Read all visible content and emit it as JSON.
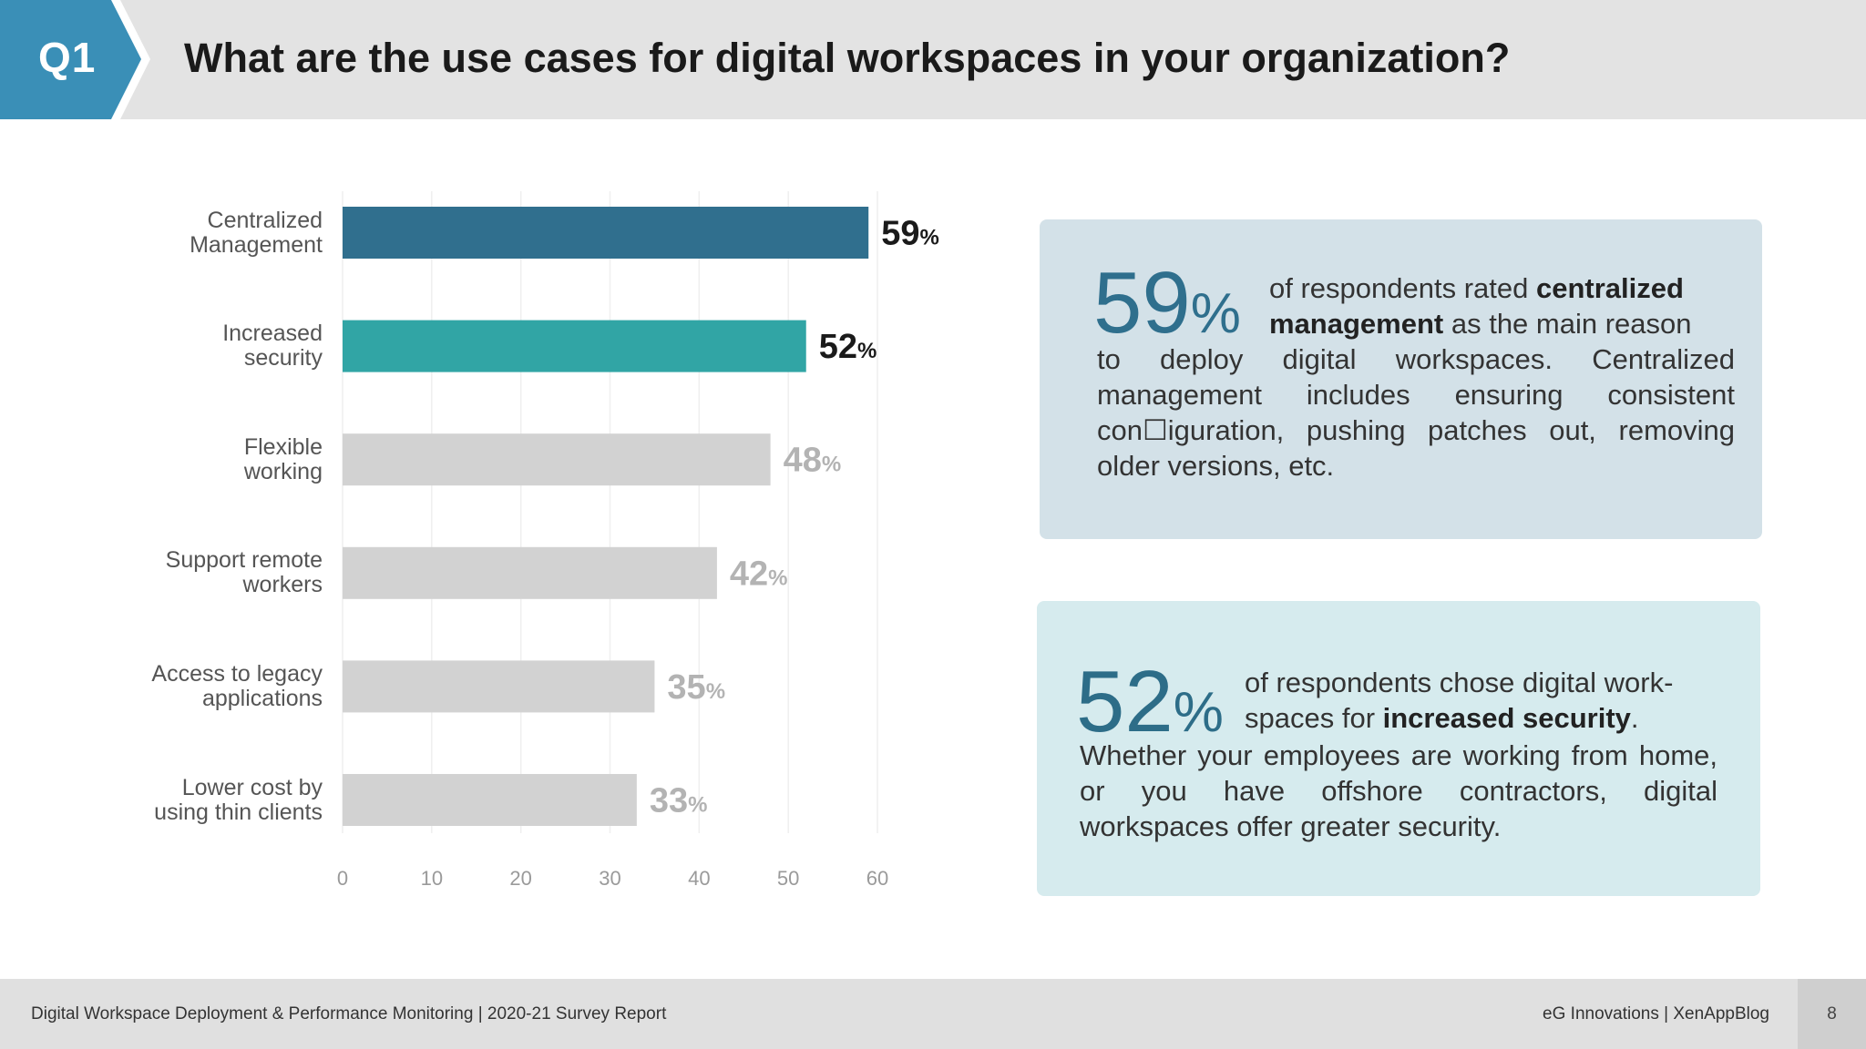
{
  "header": {
    "badge": "Q1",
    "title": "What are the use cases for digital workspaces in your organization?"
  },
  "colors": {
    "badge": "#3a8fb7",
    "bar_primary": "#306f8e",
    "bar_secondary": "#31a5a5",
    "bar_other": "#d2d2d2",
    "value_strong": "#1a1a1a",
    "value_muted": "#b3b3b3"
  },
  "chart_data": {
    "type": "bar",
    "orientation": "horizontal",
    "categories": [
      "Centralized\nManagement",
      "Increased\nsecurity",
      "Flexible\nworking",
      "Support remote\nworkers",
      "Access to legacy\napplications",
      "Lower cost by\nusing thin clients"
    ],
    "values": [
      59,
      52,
      48,
      42,
      35,
      33
    ],
    "value_suffix": "%",
    "xlim": [
      0,
      60
    ],
    "xticks": [
      0,
      10,
      20,
      30,
      40,
      50,
      60
    ],
    "grid": true,
    "title": "",
    "xlabel": "",
    "ylabel": ""
  },
  "callouts": [
    {
      "big_number": "59",
      "big_suffix": "%",
      "text_pre": "of respondents rated ",
      "text_bold": "centralized management",
      "text_post": " as the main reason",
      "text_body": "to deploy digital workspaces. Centralized management includes ensuring consistent con☐iguration, pushing patches out, removing older versions, etc."
    },
    {
      "big_number": "52",
      "big_suffix": "%",
      "text_pre": "of respondents chose digital work-spaces for ",
      "text_bold": "increased security",
      "text_post": ".",
      "text_body": "Whether your employees are working from home, or you have offshore contractors, digital workspaces offer greater security."
    }
  ],
  "footer": {
    "left": "Digital Workspace Deployment & Performance Monitoring | 2020-21 Survey Report",
    "right": "eG Innovations  |  XenAppBlog",
    "page_number": "8"
  }
}
